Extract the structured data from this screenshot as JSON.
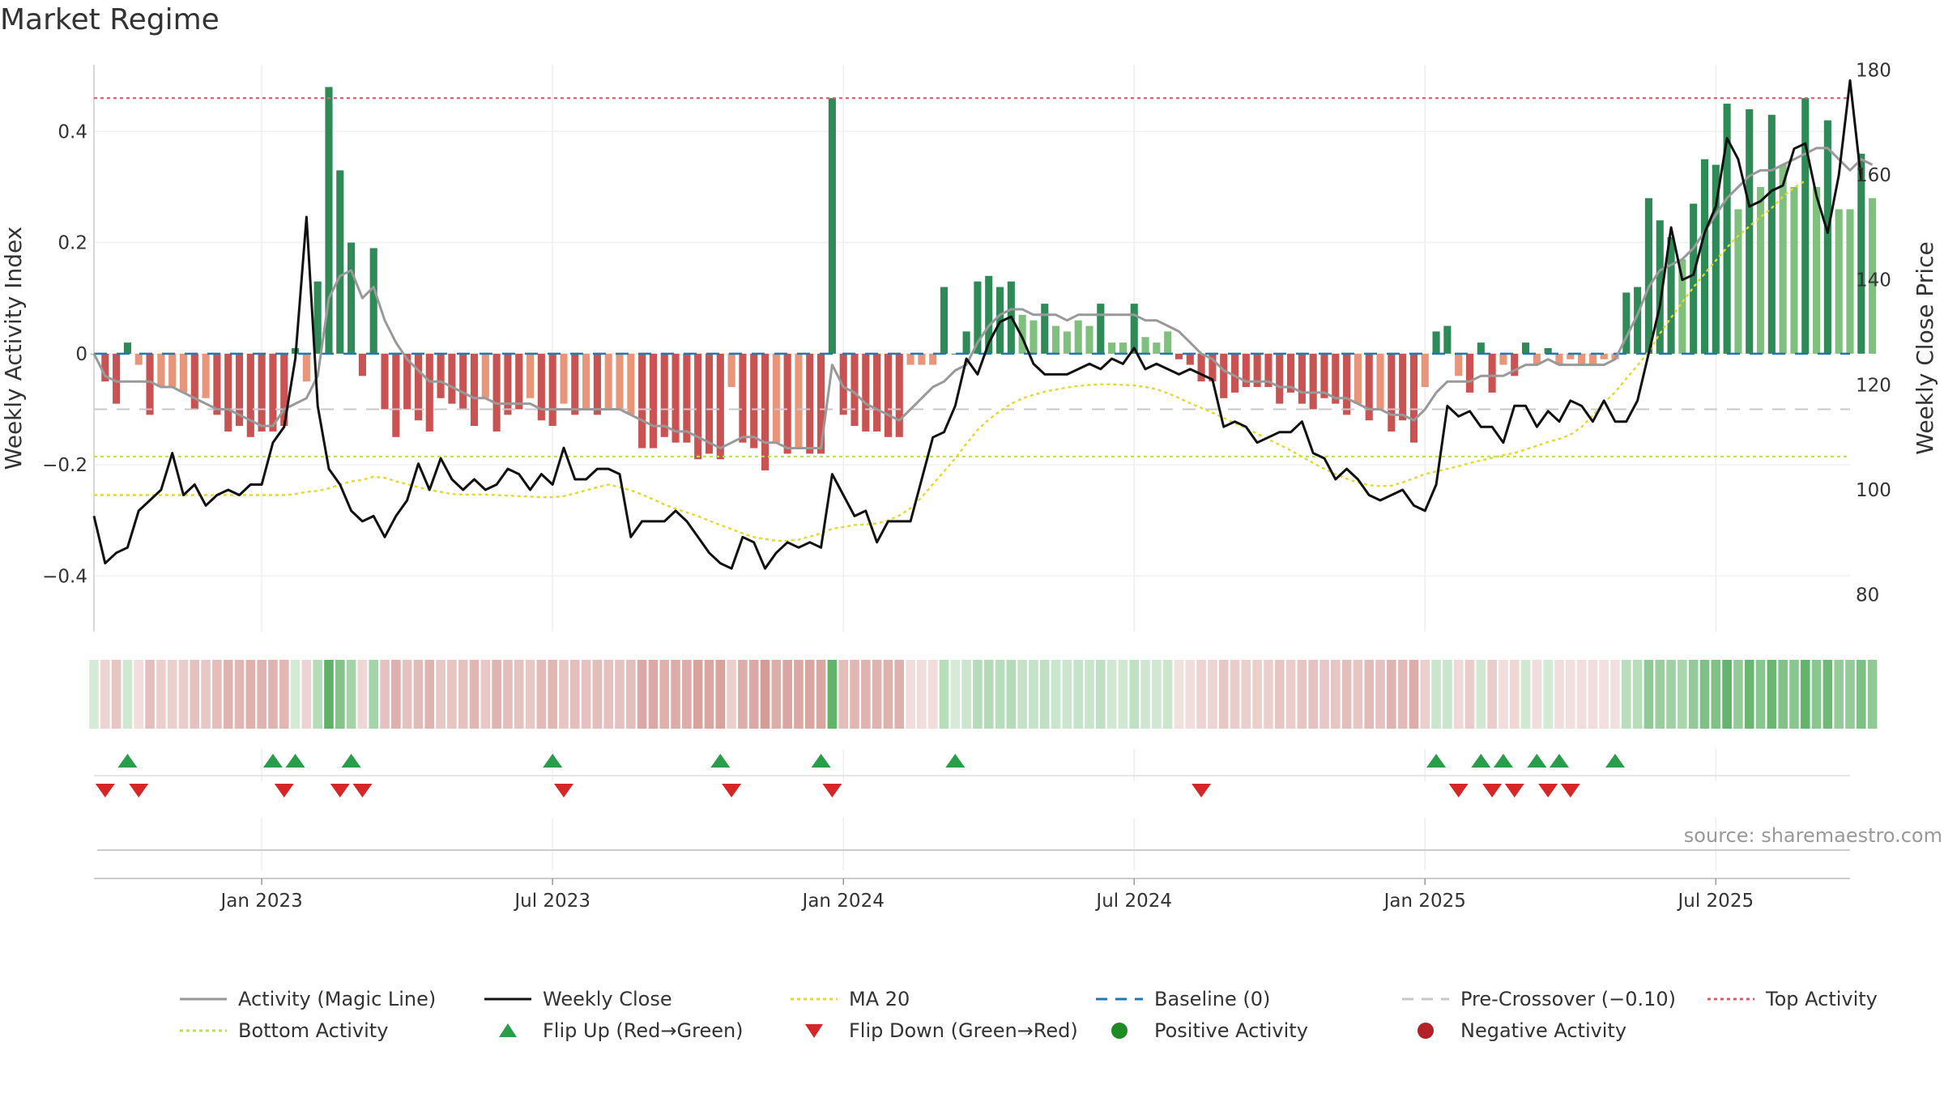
{
  "title": "Market Regime",
  "source": "source: sharemaestro.com",
  "chart_data": {
    "type": "bar",
    "ylabel_left": "Weekly Activity Index",
    "ylabel_right": "Weekly Close Price",
    "ylim_left": [
      -0.5,
      0.52
    ],
    "ylim_right": [
      73,
      181
    ],
    "yticks_left": [
      0.4,
      0.2,
      0,
      -0.2,
      -0.4
    ],
    "yticks_left_labels": [
      "0.4",
      "0.2",
      "0",
      "−0.2",
      "−0.4"
    ],
    "yticks_right": [
      180,
      160,
      140,
      120,
      100,
      80
    ],
    "yticks_right_labels": [
      "180",
      "160",
      "140",
      "120",
      "100",
      "80"
    ],
    "x_range_weeks": [
      0,
      157
    ],
    "x_ticks": [
      {
        "label": "Jan 2023",
        "week": 15
      },
      {
        "label": "Jul 2023",
        "week": 41
      },
      {
        "label": "Jan 2024",
        "week": 67
      },
      {
        "label": "Jul 2024",
        "week": 93
      },
      {
        "label": "Jan 2025",
        "week": 119
      },
      {
        "label": "Jul 2025",
        "week": 145
      }
    ],
    "reference_lines": {
      "top_activity": 0.46,
      "bottom_activity": -0.185,
      "pre_crossover": -0.1,
      "baseline": 0
    },
    "activity": [
      0.0,
      -0.05,
      -0.09,
      0.02,
      -0.02,
      -0.11,
      -0.06,
      -0.06,
      -0.07,
      -0.1,
      -0.08,
      -0.11,
      -0.14,
      -0.13,
      -0.15,
      -0.14,
      -0.14,
      -0.13,
      0.01,
      -0.05,
      0.13,
      0.48,
      0.33,
      0.2,
      -0.04,
      0.19,
      -0.1,
      -0.15,
      -0.1,
      -0.12,
      -0.14,
      -0.08,
      -0.09,
      -0.1,
      -0.13,
      -0.08,
      -0.14,
      -0.11,
      -0.1,
      -0.08,
      -0.12,
      -0.13,
      -0.09,
      -0.11,
      -0.1,
      -0.11,
      -0.1,
      -0.1,
      -0.11,
      -0.17,
      -0.17,
      -0.15,
      -0.16,
      -0.16,
      -0.19,
      -0.18,
      -0.19,
      -0.06,
      -0.16,
      -0.17,
      -0.21,
      -0.16,
      -0.18,
      -0.17,
      -0.18,
      -0.18,
      0.46,
      -0.11,
      -0.13,
      -0.14,
      -0.14,
      -0.15,
      -0.15,
      -0.02,
      -0.02,
      -0.02,
      0.12,
      0.0,
      0.04,
      0.13,
      0.14,
      0.12,
      0.13,
      0.07,
      0.06,
      0.09,
      0.05,
      0.04,
      0.06,
      0.05,
      0.09,
      0.02,
      0.02,
      0.09,
      0.03,
      0.02,
      0.04,
      -0.01,
      -0.02,
      -0.05,
      -0.05,
      -0.08,
      -0.07,
      -0.06,
      -0.06,
      -0.06,
      -0.09,
      -0.07,
      -0.09,
      -0.1,
      -0.08,
      -0.09,
      -0.11,
      -0.09,
      -0.12,
      -0.1,
      -0.14,
      -0.12,
      -0.16,
      -0.06,
      0.04,
      0.05,
      -0.04,
      -0.07,
      0.02,
      -0.07,
      -0.02,
      -0.04,
      0.02,
      -0.02,
      0.01,
      -0.02,
      -0.01,
      -0.02,
      -0.02,
      -0.01,
      -0.01,
      0.11,
      0.12,
      0.28,
      0.24,
      0.21,
      0.17,
      0.27,
      0.35,
      0.34,
      0.45,
      0.26,
      0.44,
      0.3,
      0.43,
      0.34,
      0.3,
      0.46,
      0.3,
      0.42,
      0.26,
      0.26,
      0.36,
      0.28
    ],
    "magic_line": [
      0.0,
      -0.04,
      -0.05,
      -0.05,
      -0.05,
      -0.05,
      -0.06,
      -0.06,
      -0.07,
      -0.08,
      -0.09,
      -0.1,
      -0.1,
      -0.11,
      -0.12,
      -0.13,
      -0.13,
      -0.1,
      -0.09,
      -0.08,
      -0.04,
      0.1,
      0.14,
      0.15,
      0.1,
      0.12,
      0.06,
      0.02,
      -0.01,
      -0.03,
      -0.05,
      -0.05,
      -0.06,
      -0.07,
      -0.08,
      -0.08,
      -0.09,
      -0.09,
      -0.09,
      -0.09,
      -0.1,
      -0.1,
      -0.1,
      -0.1,
      -0.1,
      -0.1,
      -0.1,
      -0.1,
      -0.11,
      -0.12,
      -0.13,
      -0.13,
      -0.14,
      -0.14,
      -0.15,
      -0.16,
      -0.17,
      -0.16,
      -0.15,
      -0.15,
      -0.16,
      -0.16,
      -0.17,
      -0.17,
      -0.17,
      -0.17,
      -0.02,
      -0.06,
      -0.07,
      -0.09,
      -0.1,
      -0.11,
      -0.12,
      -0.1,
      -0.08,
      -0.06,
      -0.05,
      -0.03,
      -0.02,
      0.02,
      0.05,
      0.07,
      0.08,
      0.08,
      0.07,
      0.07,
      0.07,
      0.06,
      0.07,
      0.07,
      0.07,
      0.07,
      0.07,
      0.07,
      0.06,
      0.06,
      0.05,
      0.04,
      0.02,
      0.0,
      -0.01,
      -0.03,
      -0.04,
      -0.05,
      -0.05,
      -0.05,
      -0.06,
      -0.06,
      -0.07,
      -0.07,
      -0.07,
      -0.08,
      -0.08,
      -0.09,
      -0.1,
      -0.1,
      -0.11,
      -0.11,
      -0.12,
      -0.1,
      -0.07,
      -0.05,
      -0.05,
      -0.05,
      -0.04,
      -0.04,
      -0.04,
      -0.03,
      -0.02,
      -0.02,
      -0.01,
      -0.02,
      -0.02,
      -0.02,
      -0.02,
      -0.02,
      -0.01,
      0.03,
      0.07,
      0.12,
      0.15,
      0.16,
      0.17,
      0.19,
      0.22,
      0.25,
      0.28,
      0.3,
      0.32,
      0.33,
      0.33,
      0.34,
      0.35,
      0.36,
      0.37,
      0.37,
      0.35,
      0.33,
      0.35,
      0.34
    ],
    "weekly_close": [
      95,
      86,
      88,
      89,
      96,
      98,
      100,
      107,
      99,
      101,
      97,
      99,
      100,
      99,
      101,
      101,
      109,
      112,
      125,
      152,
      116,
      104,
      101,
      96,
      94,
      95,
      91,
      95,
      98,
      105,
      100,
      106,
      102,
      100,
      102,
      100,
      101,
      104,
      103,
      100,
      103,
      101,
      108,
      102,
      102,
      104,
      104,
      103,
      91,
      94,
      94,
      94,
      96,
      94,
      91,
      88,
      86,
      85,
      91,
      90,
      85,
      88,
      90,
      89,
      90,
      89,
      103,
      99,
      95,
      96,
      90,
      94,
      94,
      94,
      102,
      110,
      111,
      116,
      125,
      122,
      128,
      132,
      133,
      129,
      124,
      122,
      122,
      122,
      123,
      124,
      123,
      125,
      124,
      127,
      123,
      124,
      123,
      122,
      123,
      122,
      121,
      112,
      113,
      112,
      109,
      110,
      111,
      111,
      113,
      107,
      106,
      102,
      104,
      102,
      99,
      98,
      99,
      100,
      97,
      96,
      101,
      116,
      114,
      115,
      112,
      112,
      109,
      116,
      116,
      112,
      115,
      113,
      117,
      116,
      113,
      117,
      113,
      113,
      117,
      126,
      135,
      150,
      140,
      141,
      149,
      154,
      167,
      163,
      154,
      155,
      157,
      158,
      165,
      166,
      156,
      149,
      160,
      178,
      159
    ],
    "ma20": [
      99,
      99,
      99,
      99,
      99,
      99,
      99,
      99,
      99,
      99,
      99,
      99,
      99,
      99,
      99,
      99,
      99,
      99,
      99.2,
      99.6,
      99.8,
      100.3,
      101.0,
      101.6,
      101.9,
      102.5,
      102.3,
      101.6,
      101.1,
      100.5,
      100.0,
      99.6,
      99.2,
      99.1,
      99.1,
      99.1,
      99.0,
      98.9,
      98.8,
      98.7,
      98.6,
      98.6,
      98.8,
      99.3,
      99.9,
      100.5,
      101.0,
      100.5,
      99.9,
      99.1,
      98.2,
      97.2,
      96.4,
      95.7,
      95.0,
      94.1,
      93.3,
      92.5,
      91.7,
      91.0,
      90.6,
      90.3,
      90.3,
      90.5,
      91.1,
      91.7,
      92.6,
      92.9,
      93.3,
      93.4,
      93.6,
      94.2,
      95.1,
      96.5,
      98.6,
      101.1,
      103.5,
      106.0,
      108.8,
      111.4,
      113.4,
      115.0,
      116.4,
      117.4,
      118.1,
      118.7,
      119.1,
      119.5,
      119.8,
      120.0,
      120.1,
      120.1,
      120.0,
      119.9,
      119.6,
      119.2,
      118.4,
      117.5,
      116.5,
      115.6,
      114.7,
      113.7,
      112.7,
      111.7,
      110.7,
      109.6,
      108.6,
      107.5,
      106.3,
      105.1,
      104.0,
      103.0,
      102.1,
      101.4,
      100.9,
      100.7,
      100.8,
      101.4,
      102.2,
      103.0,
      103.5,
      104.0,
      104.5,
      105.1,
      105.6,
      106.1,
      106.6,
      107.0,
      107.7,
      108.4,
      109.1,
      109.7,
      110.5,
      112.0,
      114.2,
      116.6,
      118.6,
      121.2,
      123.7,
      126.3,
      129.8,
      132.8,
      135.8,
      138.6,
      141.2,
      143.7,
      146.2,
      148.4,
      150.2,
      152.0,
      153.7,
      155.9,
      157.6,
      158.9
    ],
    "regime_strip": {
      "green": "#56ad5e",
      "red": "#c77a74"
    },
    "flip_up_weeks": [
      3,
      16,
      18,
      23,
      41,
      56,
      65,
      77,
      120,
      124,
      126,
      129,
      131,
      136
    ],
    "flip_down_weeks": [
      1,
      4,
      17,
      22,
      24,
      42,
      57,
      66,
      99,
      122,
      125,
      127,
      130,
      132
    ],
    "colors": {
      "bar_pos_dark": "#2e8b57",
      "bar_pos_light": "#7fc07f",
      "bar_neg_dark": "#c95353",
      "bar_neg_light": "#e8957a",
      "magic_line": "#999999",
      "weekly_close": "#111111",
      "ma20": "#e6d82a",
      "baseline": "#1f77b4",
      "pre_crossover": "#c8c8c8",
      "top_activity": "#e05a6e",
      "bottom_activity": "#b5e05a",
      "flip_up": "#2a9d4a",
      "flip_down": "#d62728",
      "positive_dot": "#1f8b24",
      "negative_dot": "#b22228"
    },
    "legend": [
      {
        "label": "Activity (Magic Line)",
        "kind": "line",
        "color": "#999999",
        "dash": ""
      },
      {
        "label": "Weekly Close",
        "kind": "line",
        "color": "#111111",
        "dash": ""
      },
      {
        "label": "MA 20",
        "kind": "line",
        "color": "#e6d82a",
        "dash": "4 4"
      },
      {
        "label": "Baseline (0)",
        "kind": "line",
        "color": "#1f77b4",
        "dash": "14 10"
      },
      {
        "label": "Pre-Crossover (−0.10)",
        "kind": "line",
        "color": "#c8c8c8",
        "dash": "14 10"
      },
      {
        "label": "Top Activity",
        "kind": "line",
        "color": "#e05a6e",
        "dash": "4 4"
      },
      {
        "label": "Bottom Activity",
        "kind": "line",
        "color": "#b5e05a",
        "dash": "4 4"
      },
      {
        "label": "Flip Up (Red→Green)",
        "kind": "tri-up",
        "color": "#2a9d4a",
        "dash": ""
      },
      {
        "label": "Flip Down (Green→Red)",
        "kind": "tri-down",
        "color": "#d62728",
        "dash": ""
      },
      {
        "label": "Positive Activity",
        "kind": "dot",
        "color": "#1f8b24",
        "dash": ""
      },
      {
        "label": "Negative Activity",
        "kind": "dot",
        "color": "#b22228",
        "dash": ""
      }
    ]
  }
}
